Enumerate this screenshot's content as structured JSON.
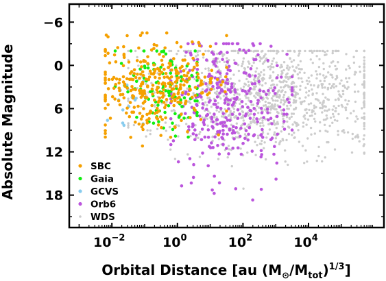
{
  "chart_data": {
    "type": "scatter",
    "title": "",
    "xlabel": {
      "main": "Orbital Distance [au (M",
      "sun": "⊙",
      "mid": "/M",
      "tot": "tot",
      "close": ")",
      "exponent": "1/3",
      "end": "]"
    },
    "ylabel": "Absolute Magnitude",
    "x_scale": "log",
    "xlim": [
      0.0005,
      2000000
    ],
    "ylim": [
      22.5,
      -8.5
    ],
    "y_inverted": true,
    "grid": false,
    "legend_position": "lower-left",
    "x_ticks": [
      {
        "value": 0.01,
        "base": "10",
        "exp": "−2"
      },
      {
        "value": 1,
        "base": "10",
        "exp": "0"
      },
      {
        "value": 100,
        "base": "10",
        "exp": "2"
      },
      {
        "value": 10000,
        "base": "10",
        "exp": "4"
      }
    ],
    "y_ticks": [
      {
        "value": -6,
        "label": "−6"
      },
      {
        "value": 0,
        "label": "0"
      },
      {
        "value": 6,
        "label": "6"
      },
      {
        "value": 12,
        "label": "12"
      },
      {
        "value": 18,
        "label": "18"
      }
    ],
    "series": [
      {
        "name": "WDS",
        "color": "#cccccc",
        "x_log_range": [
          -1.5,
          5.7
        ],
        "y_range": [
          -2,
          18
        ],
        "count": 1100,
        "centroid_log_x": 2.8,
        "centroid_y": 4
      },
      {
        "name": "Orb6",
        "color": "#bb55dd",
        "x_log_range": [
          -0.2,
          3.5
        ],
        "y_range": [
          -3,
          20.5
        ],
        "count": 330,
        "centroid_log_x": 1.5,
        "centroid_y": 5
      },
      {
        "name": "GCVS",
        "color": "#88ccee",
        "x_log_range": [
          -2.2,
          -1
        ],
        "y_range": [
          0,
          9
        ],
        "count": 14,
        "centroid_log_x": -1.6,
        "centroid_y": 5.5
      },
      {
        "name": "Gaia",
        "color": "#11ee11",
        "x_log_range": [
          -1.9,
          0.6
        ],
        "y_range": [
          -2,
          14.5
        ],
        "count": 110,
        "centroid_log_x": -0.5,
        "centroid_y": 3
      },
      {
        "name": "SBC",
        "color": "#f5a000",
        "x_log_range": [
          -2.2,
          1.5
        ],
        "y_range": [
          -4.5,
          12
        ],
        "count": 330,
        "centroid_log_x": -0.6,
        "centroid_y": 3
      }
    ],
    "legend_order": [
      "SBC",
      "Gaia",
      "GCVS",
      "Orb6",
      "WDS"
    ]
  }
}
